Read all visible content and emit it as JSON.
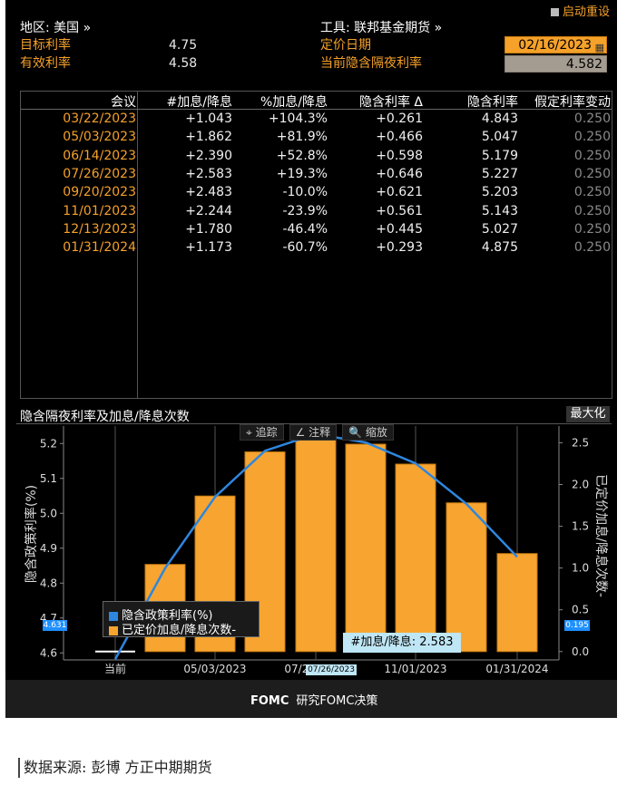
{
  "header": {
    "restore_label": "启动重设",
    "region_label": "地区: 美国 »",
    "target_rate_label": "目标利率",
    "target_rate_value": "4.75",
    "effective_rate_label": "有效利率",
    "effective_rate_value": "4.58",
    "instrument_label": "工具: 联邦基金期货 »",
    "price_date_label": "定价日期",
    "price_date_value": "02/16/2023",
    "implied_overnight_label": "当前隐含隔夜利率",
    "implied_overnight_value": "4.582"
  },
  "table": {
    "headers": [
      "会议",
      "#加息/降息",
      "%加息/降息",
      "隐含利率 Δ",
      "隐含利率",
      "假定利率变动"
    ],
    "rows": [
      [
        "03/22/2023",
        "+1.043",
        "+104.3%",
        "+0.261",
        "4.843",
        "0.250"
      ],
      [
        "05/03/2023",
        "+1.862",
        "+81.9%",
        "+0.466",
        "5.047",
        "0.250"
      ],
      [
        "06/14/2023",
        "+2.390",
        "+52.8%",
        "+0.598",
        "5.179",
        "0.250"
      ],
      [
        "07/26/2023",
        "+2.583",
        "+19.3%",
        "+0.646",
        "5.227",
        "0.250"
      ],
      [
        "09/20/2023",
        "+2.483",
        "-10.0%",
        "+0.621",
        "5.203",
        "0.250"
      ],
      [
        "11/01/2023",
        "+2.244",
        "-23.9%",
        "+0.561",
        "5.143",
        "0.250"
      ],
      [
        "12/13/2023",
        "+1.780",
        "-46.4%",
        "+0.445",
        "5.027",
        "0.250"
      ],
      [
        "01/31/2024",
        "+1.173",
        "-60.7%",
        "+0.293",
        "4.875",
        "0.250"
      ]
    ]
  },
  "chart_panel": {
    "title": "隐含隔夜利率及加息/降息次数",
    "maximize_label": "最大化",
    "tools": [
      "⌖ 追踪",
      "∠ 注释",
      "🔍 缩放"
    ],
    "tooltip": "#加息/降息: 2.583",
    "left_readout": "4.631",
    "right_readout": "0.195",
    "x_readout": "07/26/2023"
  },
  "chart_data": {
    "type": "bar",
    "categories": [
      "当前",
      "03/22/2023",
      "05/03/2023",
      "06/14/2023",
      "07/26/2023",
      "09/20/2023",
      "11/01/2023",
      "12/13/2023",
      "01/31/2024"
    ],
    "x_tick_labels": [
      "当前",
      "05/03/2023",
      "07/26/2023",
      "11/01/2023",
      "01/31/2024"
    ],
    "series": [
      {
        "name": "隐含政策利率(%)",
        "axis": "left",
        "type": "line",
        "color": "#2e86de",
        "values": [
          4.582,
          4.843,
          5.047,
          5.179,
          5.227,
          5.203,
          5.143,
          5.027,
          4.875
        ]
      },
      {
        "name": "已定价加息/降息次数-",
        "axis": "right",
        "type": "bar",
        "color": "#f7a530",
        "values": [
          0,
          1.043,
          1.862,
          2.39,
          2.583,
          2.483,
          2.244,
          1.78,
          1.173
        ]
      }
    ],
    "ylabel_left": "隐含政策利率(%)",
    "ylabel_right": "已定价加息/降息次数-",
    "ylim_left": [
      4.58,
      5.25
    ],
    "ylim_right": [
      -0.1,
      2.7
    ],
    "yticks_left": [
      "4.6",
      "4.7",
      "4.8",
      "4.9",
      "5.0",
      "5.1",
      "5.2"
    ],
    "yticks_right": [
      "0.0",
      "0.5",
      "1.0",
      "1.5",
      "2.0",
      "2.5"
    ]
  },
  "footer": {
    "brand": "FOMC",
    "text": "研究FOMC决策"
  },
  "source": "数据来源: 彭博  方正中期期货"
}
